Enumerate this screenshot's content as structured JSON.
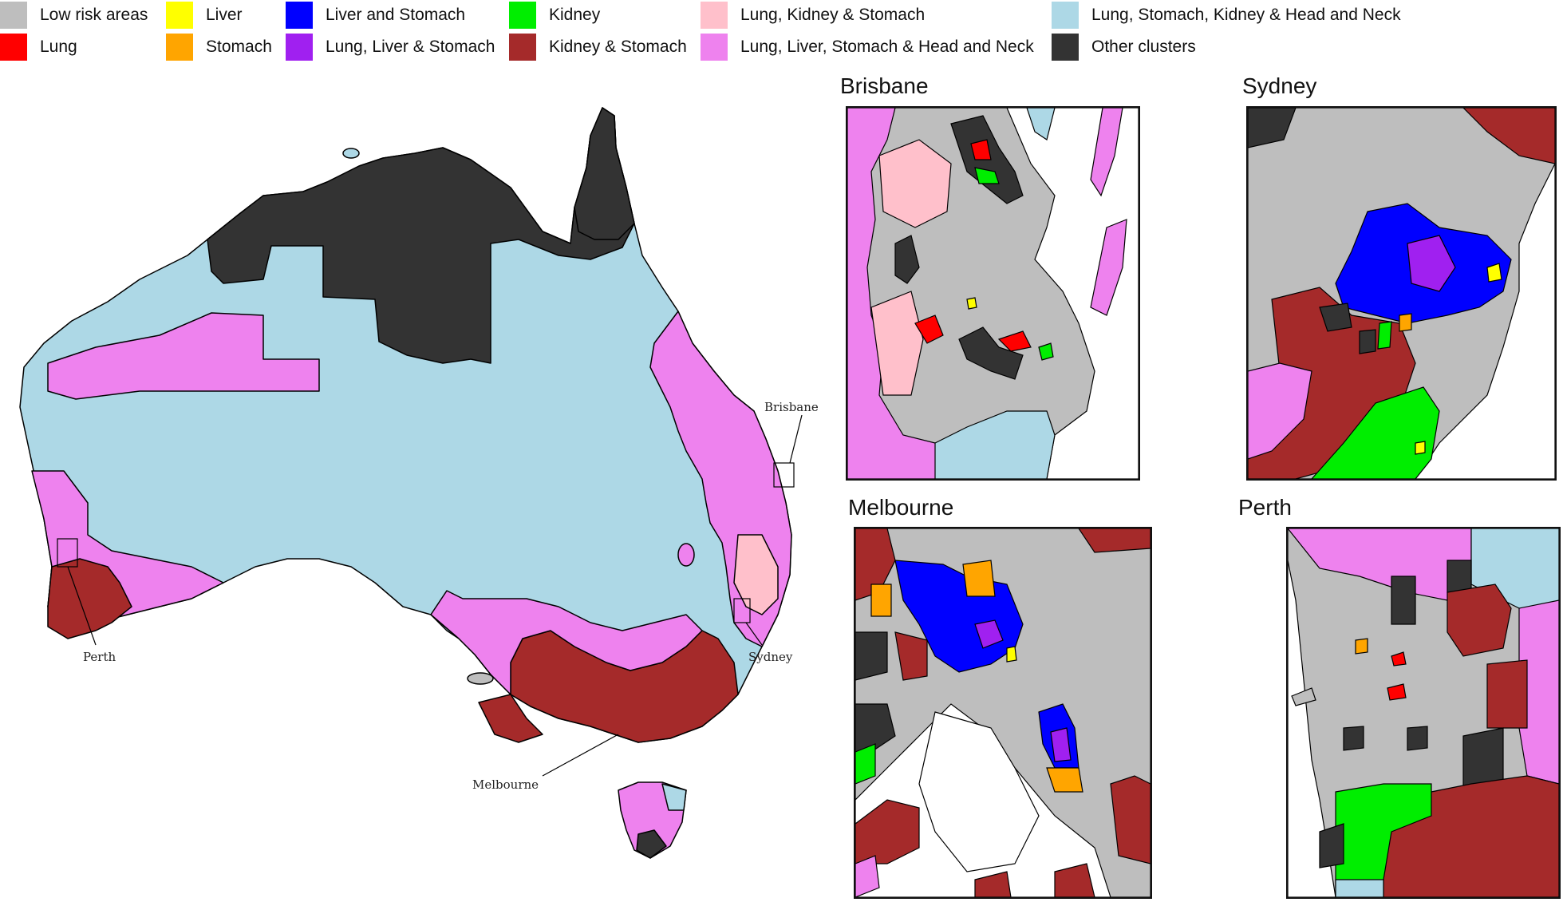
{
  "legend": [
    {
      "label": "Low risk areas",
      "color": "#bebebe"
    },
    {
      "label": "Lung",
      "color": "#ff0000"
    },
    {
      "label": "Liver",
      "color": "#ffff00"
    },
    {
      "label": "Stomach",
      "color": "#ffa500"
    },
    {
      "label": "Liver and Stomach",
      "color": "#0000ff"
    },
    {
      "label": "Lung, Liver & Stomach",
      "color": "#a020f0"
    },
    {
      "label": "Kidney",
      "color": "#00ee00"
    },
    {
      "label": "Kidney & Stomach",
      "color": "#a52a2a"
    },
    {
      "label": "Lung, Kidney & Stomach",
      "color": "#ffc0cb"
    },
    {
      "label": "Lung, Liver, Stomach & Head and Neck",
      "color": "#ee82ee"
    },
    {
      "label": "Lung, Stomach, Kidney & Head and Neck",
      "color": "#add8e6"
    },
    {
      "label": "Other clusters",
      "color": "#333333"
    }
  ],
  "main_map": {
    "city_labels": {
      "brisbane": "Brisbane",
      "sydney": "Sydney",
      "melbourne": "Melbourne",
      "perth": "Perth"
    }
  },
  "insets": {
    "brisbane": {
      "title": "Brisbane"
    },
    "sydney": {
      "title": "Sydney"
    },
    "melbourne": {
      "title": "Melbourne"
    },
    "perth": {
      "title": "Perth"
    }
  }
}
